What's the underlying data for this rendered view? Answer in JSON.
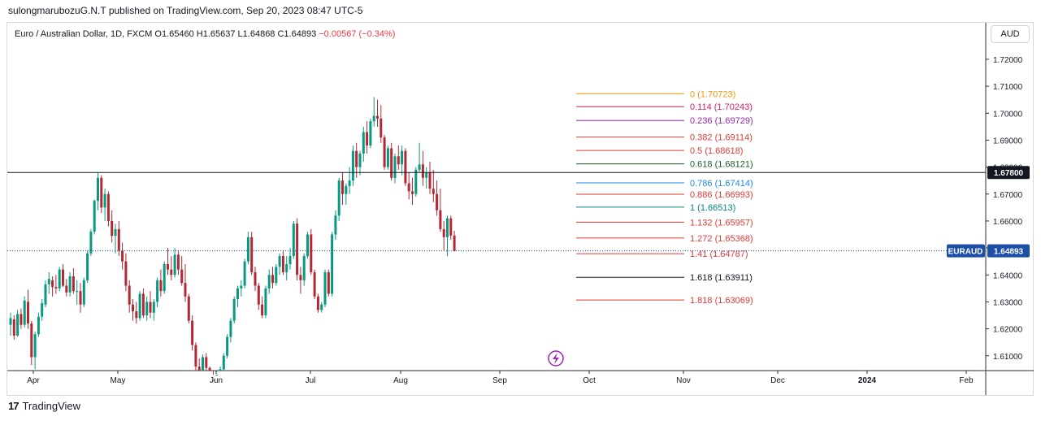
{
  "header": {
    "published_line": "sulongmarubozuG.N.T published on TradingView.com, Sep 20, 2023 08:47 UTC-5"
  },
  "legend": {
    "title": "Euro / Australian Dollar, 1D, FXCM",
    "ohlc": "O1.65460  H1.65637  L1.64868  C1.64893",
    "change": "−0.00567 (−0.34%)"
  },
  "currency_button": "AUD",
  "footer": {
    "logo_mark": "17",
    "brand": "TradingView"
  },
  "colors": {
    "up": "#089981",
    "down": "#b22833",
    "grid": "#e0e3eb",
    "axis": "#2a2e39",
    "badge_price": "#1e4fa8",
    "hline": "#131722",
    "lightning": "#9c27b0"
  },
  "chart_data": {
    "type": "candlestick",
    "symbol": "EURAUD",
    "title": "Euro / Australian Dollar, 1D, FXCM",
    "xlabel": "",
    "ylabel": "",
    "ylim": [
      1.6045,
      1.7245
    ],
    "x_tick_labels": [
      "Apr",
      "May",
      "Jun",
      "Jul",
      "Aug",
      "Sep",
      "Oct",
      "Nov",
      "Dec",
      "2024",
      "Feb"
    ],
    "y_tick_labels": [
      "1.72000",
      "1.71000",
      "1.70000",
      "1.69000",
      "1.68000",
      "1.67000",
      "1.66000",
      "1.65000",
      "1.64000",
      "1.63000",
      "1.62000",
      "1.61000"
    ],
    "candles_ohlc": [
      [
        1.6215,
        1.626,
        1.6175,
        1.624
      ],
      [
        1.6235,
        1.625,
        1.616,
        1.6175
      ],
      [
        1.6175,
        1.627,
        1.617,
        1.6255
      ],
      [
        1.6255,
        1.6275,
        1.62,
        1.6215
      ],
      [
        1.6215,
        1.632,
        1.6205,
        1.6305
      ],
      [
        1.63,
        1.6345,
        1.62,
        1.622
      ],
      [
        1.622,
        1.623,
        1.6065,
        1.6095
      ],
      [
        1.6095,
        1.619,
        1.605,
        1.618
      ],
      [
        1.618,
        1.626,
        1.617,
        1.6245
      ],
      [
        1.6245,
        1.631,
        1.623,
        1.6295
      ],
      [
        1.629,
        1.638,
        1.628,
        1.6365
      ],
      [
        1.6365,
        1.641,
        1.633,
        1.6385
      ],
      [
        1.638,
        1.6395,
        1.632,
        1.6355
      ],
      [
        1.6355,
        1.64,
        1.633,
        1.635
      ],
      [
        1.635,
        1.643,
        1.634,
        1.642
      ],
      [
        1.642,
        1.644,
        1.6355,
        1.636
      ],
      [
        1.636,
        1.6385,
        1.632,
        1.6335
      ],
      [
        1.6335,
        1.641,
        1.632,
        1.6395
      ],
      [
        1.6395,
        1.6425,
        1.633,
        1.634
      ],
      [
        1.634,
        1.638,
        1.629,
        1.634
      ],
      [
        1.634,
        1.637,
        1.626,
        1.629
      ],
      [
        1.629,
        1.639,
        1.628,
        1.638
      ],
      [
        1.638,
        1.649,
        1.637,
        1.648
      ],
      [
        1.648,
        1.657,
        1.647,
        1.656
      ],
      [
        1.656,
        1.668,
        1.655,
        1.6675
      ],
      [
        1.6675,
        1.678,
        1.664,
        1.676
      ],
      [
        1.676,
        1.677,
        1.663,
        1.665
      ],
      [
        1.665,
        1.672,
        1.66,
        1.67
      ],
      [
        1.67,
        1.671,
        1.658,
        1.66
      ],
      [
        1.66,
        1.664,
        1.652,
        1.6545
      ],
      [
        1.6545,
        1.659,
        1.648,
        1.657
      ],
      [
        1.657,
        1.66,
        1.647,
        1.649
      ],
      [
        1.649,
        1.652,
        1.642,
        1.645
      ],
      [
        1.645,
        1.648,
        1.634,
        1.636
      ],
      [
        1.636,
        1.638,
        1.626,
        1.629
      ],
      [
        1.629,
        1.631,
        1.623,
        1.6265
      ],
      [
        1.6265,
        1.63,
        1.622,
        1.624
      ],
      [
        1.624,
        1.634,
        1.623,
        1.633
      ],
      [
        1.633,
        1.635,
        1.624,
        1.625
      ],
      [
        1.625,
        1.632,
        1.623,
        1.63
      ],
      [
        1.63,
        1.634,
        1.624,
        1.626
      ],
      [
        1.626,
        1.631,
        1.623,
        1.63
      ],
      [
        1.63,
        1.639,
        1.628,
        1.638
      ],
      [
        1.638,
        1.642,
        1.632,
        1.634
      ],
      [
        1.634,
        1.645,
        1.633,
        1.644
      ],
      [
        1.644,
        1.65,
        1.64,
        1.642
      ],
      [
        1.642,
        1.647,
        1.638,
        1.64
      ],
      [
        1.64,
        1.65,
        1.639,
        1.6475
      ],
      [
        1.6475,
        1.649,
        1.64,
        1.642
      ],
      [
        1.642,
        1.647,
        1.636,
        1.637
      ],
      [
        1.637,
        1.644,
        1.63,
        1.632
      ],
      [
        1.632,
        1.633,
        1.622,
        1.623
      ],
      [
        1.623,
        1.625,
        1.612,
        1.614
      ],
      [
        1.614,
        1.615,
        1.604,
        1.606
      ],
      [
        1.606,
        1.609,
        1.602,
        1.604
      ],
      [
        1.604,
        1.6105,
        1.603,
        1.6095
      ],
      [
        1.6095,
        1.611,
        1.6045,
        1.6055
      ],
      [
        1.6055,
        1.606,
        1.599,
        1.601
      ],
      [
        1.601,
        1.603,
        1.598,
        1.6
      ],
      [
        1.6,
        1.604,
        1.5985,
        1.603
      ],
      [
        1.603,
        1.606,
        1.6,
        1.605
      ],
      [
        1.605,
        1.611,
        1.604,
        1.61
      ],
      [
        1.61,
        1.618,
        1.609,
        1.617
      ],
      [
        1.617,
        1.624,
        1.615,
        1.623
      ],
      [
        1.623,
        1.632,
        1.622,
        1.631
      ],
      [
        1.631,
        1.636,
        1.628,
        1.635
      ],
      [
        1.635,
        1.638,
        1.632,
        1.636
      ],
      [
        1.636,
        1.646,
        1.635,
        1.645
      ],
      [
        1.645,
        1.656,
        1.644,
        1.654
      ],
      [
        1.654,
        1.656,
        1.64,
        1.641
      ],
      [
        1.641,
        1.643,
        1.634,
        1.636
      ],
      [
        1.636,
        1.637,
        1.627,
        1.629
      ],
      [
        1.629,
        1.632,
        1.624,
        1.625
      ],
      [
        1.625,
        1.636,
        1.624,
        1.635
      ],
      [
        1.635,
        1.642,
        1.633,
        1.64
      ],
      [
        1.64,
        1.643,
        1.635,
        1.637
      ],
      [
        1.637,
        1.644,
        1.636,
        1.643
      ],
      [
        1.643,
        1.648,
        1.64,
        1.647
      ],
      [
        1.647,
        1.649,
        1.64,
        1.641
      ],
      [
        1.641,
        1.647,
        1.638,
        1.644
      ],
      [
        1.644,
        1.65,
        1.642,
        1.647
      ],
      [
        1.647,
        1.66,
        1.646,
        1.659
      ],
      [
        1.659,
        1.661,
        1.638,
        1.64
      ],
      [
        1.64,
        1.643,
        1.633,
        1.638
      ],
      [
        1.638,
        1.648,
        1.636,
        1.647
      ],
      [
        1.647,
        1.656,
        1.646,
        1.655
      ],
      [
        1.655,
        1.657,
        1.64,
        1.641
      ],
      [
        1.641,
        1.642,
        1.631,
        1.632
      ],
      [
        1.632,
        1.633,
        1.626,
        1.627
      ],
      [
        1.627,
        1.63,
        1.626,
        1.629
      ],
      [
        1.629,
        1.642,
        1.628,
        1.641
      ],
      [
        1.641,
        1.642,
        1.632,
        1.633
      ],
      [
        1.633,
        1.656,
        1.632,
        1.655
      ],
      [
        1.655,
        1.664,
        1.653,
        1.662
      ],
      [
        1.662,
        1.676,
        1.66,
        1.675
      ],
      [
        1.675,
        1.678,
        1.666,
        1.67
      ],
      [
        1.67,
        1.674,
        1.666,
        1.673
      ],
      [
        1.673,
        1.68,
        1.67,
        1.675
      ],
      [
        1.675,
        1.688,
        1.673,
        1.686
      ],
      [
        1.686,
        1.689,
        1.676,
        1.68
      ],
      [
        1.68,
        1.686,
        1.677,
        1.685
      ],
      [
        1.685,
        1.695,
        1.682,
        1.693
      ],
      [
        1.693,
        1.697,
        1.685,
        1.688
      ],
      [
        1.688,
        1.698,
        1.687,
        1.697
      ],
      [
        1.697,
        1.706,
        1.695,
        1.699
      ],
      [
        1.699,
        1.705,
        1.695,
        1.698
      ],
      [
        1.698,
        1.703,
        1.689,
        1.691
      ],
      [
        1.691,
        1.692,
        1.679,
        1.68
      ],
      [
        1.68,
        1.688,
        1.679,
        1.687
      ],
      [
        1.687,
        1.689,
        1.675,
        1.676
      ],
      [
        1.676,
        1.685,
        1.674,
        1.684
      ],
      [
        1.684,
        1.688,
        1.679,
        1.681
      ],
      [
        1.681,
        1.688,
        1.677,
        1.686
      ],
      [
        1.686,
        1.687,
        1.673,
        1.674
      ],
      [
        1.674,
        1.678,
        1.668,
        1.671
      ],
      [
        1.671,
        1.676,
        1.666,
        1.67
      ],
      [
        1.67,
        1.68,
        1.669,
        1.679
      ],
      [
        1.679,
        1.689,
        1.678,
        1.681
      ],
      [
        1.681,
        1.686,
        1.673,
        1.676
      ],
      [
        1.676,
        1.68,
        1.672,
        1.678
      ],
      [
        1.678,
        1.682,
        1.67,
        1.672
      ],
      [
        1.672,
        1.679,
        1.667,
        1.67
      ],
      [
        1.67,
        1.675,
        1.662,
        1.664
      ],
      [
        1.664,
        1.672,
        1.656,
        1.657
      ],
      [
        1.657,
        1.66,
        1.649,
        1.654
      ],
      [
        1.654,
        1.662,
        1.647,
        1.661
      ],
      [
        1.661,
        1.662,
        1.653,
        1.6546
      ],
      [
        1.6546,
        1.6564,
        1.6487,
        1.6489
      ]
    ],
    "fibonacci": [
      {
        "ratio": "0",
        "price": "1.70723",
        "label": "0 (1.70723)",
        "color": "#f59300"
      },
      {
        "ratio": "0.114",
        "price": "1.70243",
        "label": "0.114 (1.70243)",
        "color": "#d81b60"
      },
      {
        "ratio": "0.236",
        "price": "1.69729",
        "label": "0.236 (1.69729)",
        "color": "#9c27b0"
      },
      {
        "ratio": "0.382",
        "price": "1.69114",
        "label": "0.382 (1.69114)",
        "color": "#e53935"
      },
      {
        "ratio": "0.5",
        "price": "1.68618",
        "label": "0.5 (1.68618)",
        "color": "#e53935"
      },
      {
        "ratio": "0.618",
        "price": "1.68121",
        "label": "0.618 (1.68121)",
        "color": "#1b5e20"
      },
      {
        "ratio": "0.786",
        "price": "1.67414",
        "label": "0.786 (1.67414)",
        "color": "#1e88e5"
      },
      {
        "ratio": "0.886",
        "price": "1.66993",
        "label": "0.886 (1.66993)",
        "color": "#e53935"
      },
      {
        "ratio": "1",
        "price": "1.66513",
        "label": "1 (1.66513)",
        "color": "#00897b"
      },
      {
        "ratio": "1.132",
        "price": "1.65957",
        "label": "1.132 (1.65957)",
        "color": "#e53935"
      },
      {
        "ratio": "1.272",
        "price": "1.65368",
        "label": "1.272 (1.65368)",
        "color": "#e53935"
      },
      {
        "ratio": "1.41",
        "price": "1.64787",
        "label": "1.41 (1.64787)",
        "color": "#e53935"
      },
      {
        "ratio": "1.618",
        "price": "1.63911",
        "label": "1.618 (1.63911)",
        "color": "#131722"
      },
      {
        "ratio": "1.818",
        "price": "1.63069",
        "label": "1.818 (1.63069)",
        "color": "#e53935"
      }
    ],
    "horizontal_line": {
      "price": 1.678,
      "label": "1.67800"
    },
    "last_price": {
      "price": 1.64893,
      "label": "1.64893",
      "symbol_badge": "EURAUD"
    },
    "grid": false
  }
}
